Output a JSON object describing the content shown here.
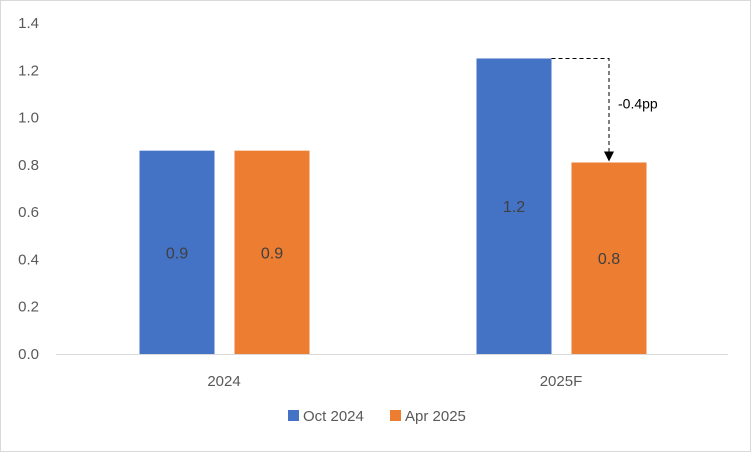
{
  "chart_data": {
    "type": "bar",
    "categories": [
      "2024",
      "2025F"
    ],
    "series": [
      {
        "name": "Oct 2024",
        "values": [
          0.86,
          1.25
        ],
        "labels": [
          "0.9",
          "1.2"
        ],
        "color": "#4472C4"
      },
      {
        "name": "Apr 2025",
        "values": [
          0.86,
          0.81
        ],
        "labels": [
          "0.9",
          "0.8"
        ],
        "color": "#ED7D31"
      }
    ],
    "y_ticks": [
      "0.0",
      "0.2",
      "0.4",
      "0.6",
      "0.8",
      "1.0",
      "1.2",
      "1.4"
    ],
    "ylim": [
      0,
      1.4
    ],
    "grid": false,
    "legend": "bottom-center",
    "annotation": {
      "text": "-0.4pp",
      "category": "2025F",
      "from_series": "Oct 2024",
      "to_series": "Apr 2025"
    }
  }
}
